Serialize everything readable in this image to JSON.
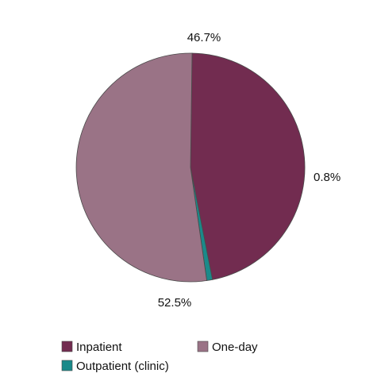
{
  "chart_data": {
    "type": "pie",
    "slices": [
      {
        "name": "Inpatient",
        "value": 46.7,
        "label": "46.7%",
        "color": "#722c50"
      },
      {
        "name": "Outpatient (clinic)",
        "value": 0.8,
        "label": "0.8%",
        "color": "#1a8a8a"
      },
      {
        "name": "One-day",
        "value": 52.5,
        "label": "52.5%",
        "color": "#9a7386"
      }
    ],
    "legend": {
      "placement": "bottom",
      "entries": [
        "Inpatient",
        "One-day",
        "Outpatient (clinic)"
      ]
    }
  }
}
